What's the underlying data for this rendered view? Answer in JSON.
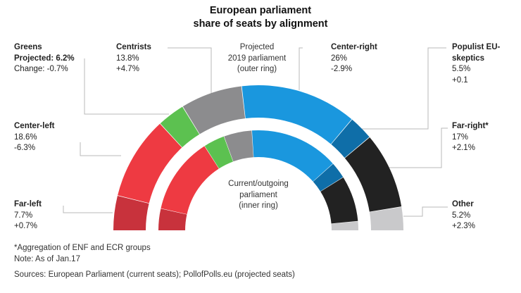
{
  "chart_data": {
    "type": "donut-semicircle",
    "title": "European parliament",
    "subtitle": "share of seats by alignment",
    "rings": [
      {
        "name": "Projected 2019 parliament (outer ring)",
        "label_lines": [
          "Projected",
          "2019 parliament",
          "(outer ring)"
        ],
        "values": [
          7.7,
          18.6,
          6.2,
          13.8,
          26,
          5.5,
          17,
          5.2
        ]
      },
      {
        "name": "Current/outgoing parliament (inner ring)",
        "label_lines": [
          "Current/outgoing",
          "parliament",
          "(inner ring)"
        ],
        "values": [
          7.0,
          24.9,
          6.9,
          9.1,
          28.9,
          5.4,
          14.9,
          2.9
        ]
      }
    ],
    "categories": [
      {
        "name": "Far-left",
        "value": "7.7%",
        "change": "+0.7%",
        "color": "#c8323c"
      },
      {
        "name": "Center-left",
        "value": "18.6%",
        "change": "-6.3%",
        "color": "#ee3a42"
      },
      {
        "name": "Greens",
        "value": "Projected: 6.2%",
        "change": "Change: -0.7%",
        "color": "#5cc150"
      },
      {
        "name": "Centrists",
        "value": "13.8%",
        "change": "+4.7%",
        "color": "#8c8c8e"
      },
      {
        "name": "Center-right",
        "value": "26%",
        "change": "-2.9%",
        "color": "#1a97de"
      },
      {
        "name": "Populist EU-skeptics",
        "value": "5.5%",
        "change": "+0.1",
        "color": "#0f6ea8"
      },
      {
        "name": "Far-right*",
        "value": "17%",
        "change": "+2.1%",
        "color": "#222222"
      },
      {
        "name": "Other",
        "value": "5.2%",
        "change": "+2.3%",
        "color": "#c9c9cb"
      }
    ]
  },
  "footnotes": {
    "note1": "*Aggregation of ENF and ECR groups",
    "note2": "Note: As of Jan.17",
    "sources": "Sources: European Parliament (current seats); PollofPolls.eu (projected seats)"
  },
  "colors": {
    "leader": "#b8b8b8",
    "text": "#222222"
  }
}
